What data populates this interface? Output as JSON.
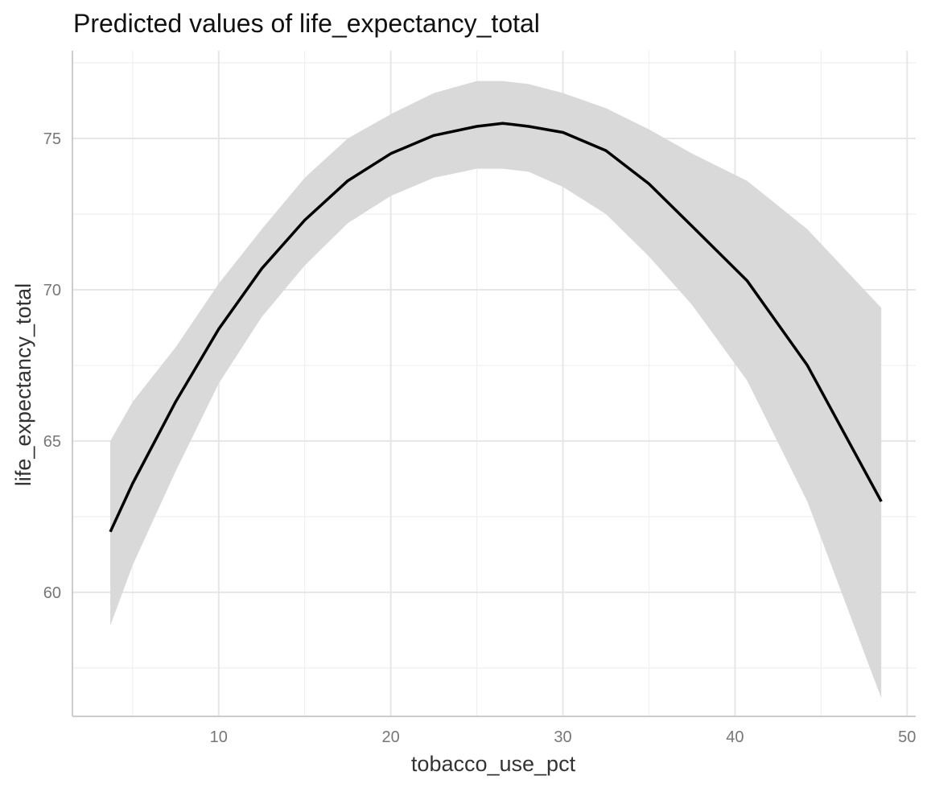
{
  "chart_data": {
    "type": "line",
    "title": "Predicted values of life_expectancy_total",
    "xlabel": "tobacco_use_pct",
    "ylabel": "life_expectancy_total",
    "xlim": [
      1.5,
      50.5
    ],
    "ylim": [
      55.9,
      77.9
    ],
    "x_ticks": [
      10,
      20,
      30,
      40,
      50
    ],
    "y_ticks": [
      60,
      65,
      70,
      75
    ],
    "grid": true,
    "colors": {
      "line": "#000000",
      "ribbon": "#d9d9d9"
    },
    "series": [
      {
        "x": [
          3.7,
          5.0,
          7.5,
          10.0,
          12.5,
          15.0,
          17.5,
          20.0,
          22.5,
          25.0,
          26.5,
          28.0,
          30.0,
          32.5,
          35.0,
          37.5,
          40.7,
          44.2,
          48.5
        ],
        "y": [
          62.0,
          63.6,
          66.3,
          68.7,
          70.7,
          72.3,
          73.6,
          74.5,
          75.1,
          75.4,
          75.5,
          75.4,
          75.2,
          74.6,
          73.5,
          72.1,
          70.3,
          67.5,
          63.0
        ],
        "lower": [
          58.9,
          60.9,
          64.0,
          66.9,
          69.1,
          70.8,
          72.2,
          73.1,
          73.7,
          74.0,
          74.0,
          73.9,
          73.4,
          72.5,
          71.1,
          69.5,
          67.0,
          63.0,
          56.5
        ],
        "upper": [
          65.0,
          66.3,
          68.1,
          70.2,
          72.0,
          73.7,
          75.0,
          75.8,
          76.5,
          76.9,
          76.9,
          76.8,
          76.5,
          76.0,
          75.3,
          74.5,
          73.6,
          72.0,
          69.4
        ]
      }
    ]
  }
}
